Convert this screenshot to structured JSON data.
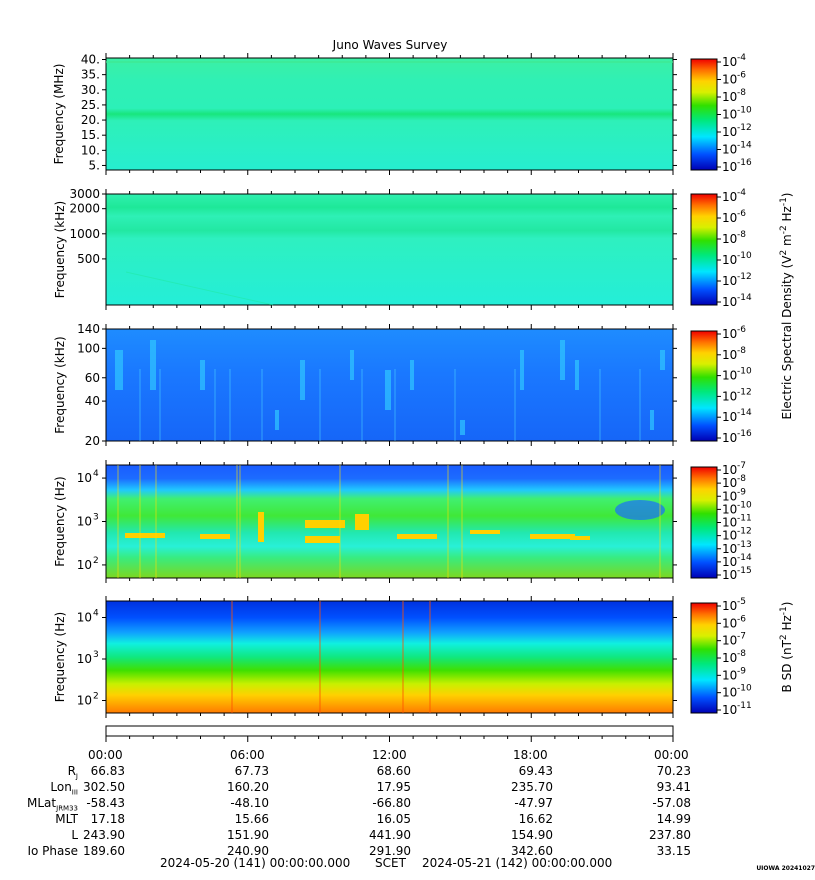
{
  "chart_data": {
    "type": "heatmap",
    "title": "Juno Waves Survey",
    "x_tick_labels": [
      "00:00",
      "06:00",
      "12:00",
      "18:00",
      "00:00"
    ],
    "panels": [
      {
        "name": "high-band",
        "ylabel": "Frequency (MHz)",
        "yscale": "linear",
        "ylim": [
          3.5,
          40.5
        ],
        "yticks": [
          {
            "value": 40,
            "label": "40."
          },
          {
            "value": 35,
            "label": "35."
          },
          {
            "value": 30,
            "label": "30."
          },
          {
            "value": 25,
            "label": "25."
          },
          {
            "value": 20,
            "label": "20."
          },
          {
            "value": 15,
            "label": "15."
          },
          {
            "value": 10,
            "label": "10."
          },
          {
            "value": 5,
            "label": "5."
          }
        ],
        "colorbar": {
          "exponents": [
            "-4",
            "-6",
            "-8",
            "-10",
            "-12",
            "-14",
            "-16"
          ]
        }
      },
      {
        "name": "mid-band",
        "ylabel": "Frequency (kHz)",
        "yscale": "log",
        "ylim": [
          140,
          3000
        ],
        "yticks": [
          {
            "value": 3000,
            "label": "3000"
          },
          {
            "value": 2000,
            "label": "2000"
          },
          {
            "value": 1000,
            "label": "1000"
          },
          {
            "value": 500,
            "label": "500"
          }
        ],
        "colorbar": {
          "exponents": [
            "-4",
            "-6",
            "-8",
            "-10",
            "-12",
            "-14"
          ]
        }
      },
      {
        "name": "low-khz",
        "ylabel": "Frequency (kHz)",
        "yscale": "log",
        "ylim": [
          20,
          140
        ],
        "yticks": [
          {
            "value": 140,
            "label": "140"
          },
          {
            "value": 100,
            "label": "100"
          },
          {
            "value": 60,
            "label": "60"
          },
          {
            "value": 40,
            "label": "40"
          },
          {
            "value": 20,
            "label": "20"
          }
        ],
        "colorbar": {
          "exponents": [
            "-6",
            "-8",
            "-10",
            "-12",
            "-14",
            "-16"
          ]
        }
      },
      {
        "name": "e-field-hz",
        "ylabel": "Frequency (Hz)",
        "yscale": "log",
        "ylim": [
          50,
          20000
        ],
        "yticks": [
          {
            "value": 10000,
            "label": "10",
            "exp": "4"
          },
          {
            "value": 1000,
            "label": "10",
            "exp": "3"
          },
          {
            "value": 100,
            "label": "10",
            "exp": "2"
          }
        ],
        "colorbar": {
          "exponents": [
            "-7",
            "-8",
            "-9",
            "-10",
            "-11",
            "-12",
            "-13",
            "-14",
            "-15"
          ]
        }
      },
      {
        "name": "b-field-hz",
        "ylabel": "Frequency (Hz)",
        "yscale": "log",
        "ylim": [
          50,
          25000
        ],
        "yticks": [
          {
            "value": 10000,
            "label": "10",
            "exp": "4"
          },
          {
            "value": 1000,
            "label": "10",
            "exp": "3"
          },
          {
            "value": 100,
            "label": "10",
            "exp": "2"
          }
        ],
        "colorbar": {
          "exponents": [
            "-5",
            "-6",
            "-7",
            "-8",
            "-9",
            "-10",
            "-11"
          ]
        }
      }
    ],
    "e_colorbar_label": "Electric Spectral Density (V",
    "e_colorbar_label_sup1": "2",
    "e_colorbar_label_mid": " m",
    "e_colorbar_label_sup2": "-2",
    "e_colorbar_label_mid2": " Hz",
    "e_colorbar_label_sup3": "-1",
    "e_colorbar_label_end": ")",
    "b_colorbar_label": "B SD (nT",
    "b_colorbar_label_sup1": "2",
    "b_colorbar_label_mid": " Hz",
    "b_colorbar_label_sup2": "-1",
    "b_colorbar_label_end": ")",
    "colorbar_base": "10"
  },
  "ephemeris": {
    "times": [
      "00:00",
      "06:00",
      "12:00",
      "18:00",
      "00:00"
    ],
    "rows": [
      {
        "key": "R",
        "sub": "J",
        "values": [
          "66.83",
          "67.73",
          "68.60",
          "69.43",
          "70.23"
        ]
      },
      {
        "key": "Lon",
        "sub": "III",
        "values": [
          "302.50",
          "160.20",
          "17.95",
          "235.70",
          "93.41"
        ]
      },
      {
        "key": "MLat",
        "sub": "JRM33",
        "values": [
          "-58.43",
          "-48.10",
          "-66.80",
          "-47.97",
          "-57.08"
        ]
      },
      {
        "key": "MLT",
        "sub": "",
        "values": [
          "17.18",
          "15.66",
          "16.05",
          "16.62",
          "14.99"
        ]
      },
      {
        "key": "L",
        "sub": "",
        "values": [
          "243.90",
          "151.90",
          "441.90",
          "154.90",
          "237.80"
        ]
      },
      {
        "key": "Io Phase",
        "sub": "",
        "values": [
          "189.60",
          "240.90",
          "291.90",
          "342.60",
          "33.15"
        ]
      }
    ]
  },
  "footer": {
    "start": "2024-05-20 (141) 00:00:00.000",
    "axis_name": "SCET",
    "end": "2024-05-21 (142) 00:00:00.000"
  },
  "credit": "UIOWA 20241027"
}
